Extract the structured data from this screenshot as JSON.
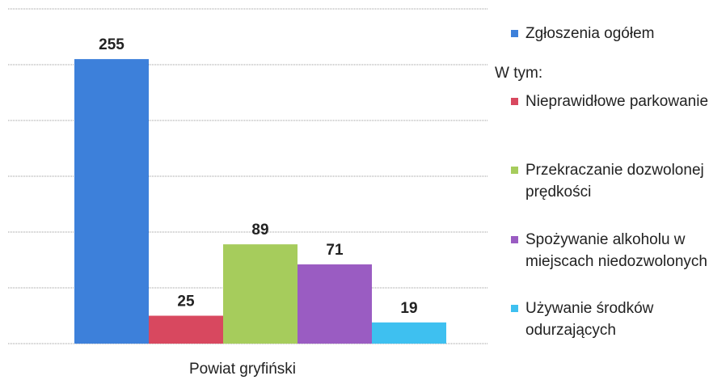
{
  "chart_data": {
    "type": "bar",
    "categories": [
      "Powiat gryfiński"
    ],
    "legend_heading": "W tym:",
    "series": [
      {
        "name": "Zgłoszenia ogółem",
        "color": "#3d80da",
        "values": [
          255
        ]
      },
      {
        "name": "Nieprawidłowe parkowanie",
        "color": "#d8485f",
        "values": [
          25
        ]
      },
      {
        "name": "Przekraczanie dozwolonej prędkości",
        "color": "#a6cc5c",
        "values": [
          89
        ]
      },
      {
        "name": "Spożywanie alkoholu w miejscach niedozwolonych",
        "color": "#9a5cc2",
        "values": [
          71
        ]
      },
      {
        "name": "Używanie środków odurzających",
        "color": "#3ec0f0",
        "values": [
          19
        ]
      }
    ],
    "ylim": [
      0,
      300
    ],
    "yticks": [
      0,
      50,
      100,
      150,
      200,
      250,
      300
    ],
    "grid": true,
    "legend": "right"
  }
}
